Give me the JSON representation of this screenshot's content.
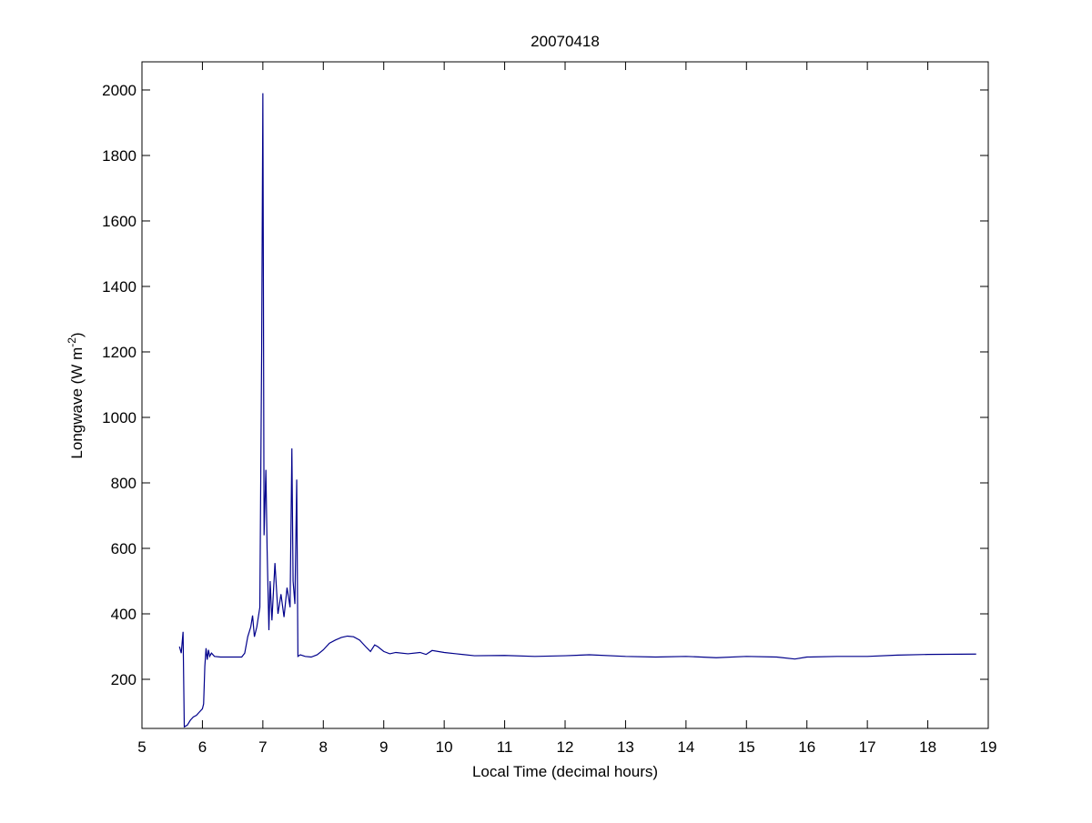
{
  "chart_data": {
    "type": "line",
    "title": "20070418",
    "xlabel": "Local Time (decimal hours)",
    "ylabel": "Longwave (W m",
    "ylabel_superscript": "-2",
    "ylabel_end": ")",
    "x": [
      5.62,
      5.65,
      5.68,
      5.7,
      5.75,
      5.8,
      5.85,
      5.9,
      5.95,
      6.0,
      6.02,
      6.04,
      6.06,
      6.08,
      6.1,
      6.12,
      6.15,
      6.2,
      6.3,
      6.5,
      6.65,
      6.7,
      6.75,
      6.8,
      6.83,
      6.86,
      6.9,
      6.95,
      6.98,
      7.0,
      7.01,
      7.02,
      7.05,
      7.07,
      7.1,
      7.12,
      7.15,
      7.2,
      7.25,
      7.3,
      7.35,
      7.4,
      7.45,
      7.48,
      7.5,
      7.53,
      7.56,
      7.58,
      7.62,
      7.7,
      7.8,
      7.9,
      8.0,
      8.1,
      8.2,
      8.3,
      8.4,
      8.5,
      8.6,
      8.7,
      8.78,
      8.85,
      8.9,
      9.0,
      9.1,
      9.2,
      9.4,
      9.6,
      9.7,
      9.8,
      10.0,
      10.2,
      10.5,
      11.0,
      11.5,
      12.0,
      12.4,
      13.0,
      13.5,
      14.0,
      14.5,
      15.0,
      15.5,
      15.8,
      16.0,
      16.5,
      17.0,
      17.5,
      18.0,
      18.8
    ],
    "series": [
      {
        "name": "Longwave",
        "color": "#00008b",
        "values": [
          300,
          280,
          345,
          55,
          60,
          75,
          85,
          90,
          100,
          110,
          125,
          240,
          295,
          260,
          290,
          270,
          280,
          270,
          268,
          268,
          268,
          280,
          330,
          360,
          395,
          330,
          360,
          420,
          1200,
          1990,
          1340,
          640,
          840,
          600,
          350,
          500,
          380,
          555,
          400,
          460,
          390,
          480,
          420,
          905,
          500,
          430,
          810,
          270,
          275,
          270,
          268,
          275,
          290,
          310,
          320,
          328,
          332,
          330,
          320,
          300,
          285,
          305,
          300,
          285,
          278,
          282,
          278,
          282,
          276,
          288,
          282,
          278,
          272,
          273,
          270,
          272,
          275,
          270,
          268,
          270,
          266,
          270,
          268,
          262,
          268,
          270,
          270,
          274,
          276,
          277
        ]
      }
    ],
    "xlim": [
      5,
      19
    ],
    "xticks": [
      5,
      6,
      7,
      8,
      9,
      10,
      11,
      12,
      13,
      14,
      15,
      16,
      17,
      18,
      19
    ],
    "ylim": [
      50,
      2086
    ],
    "yticks": [
      200,
      400,
      600,
      800,
      1000,
      1200,
      1400,
      1600,
      1800,
      2000
    ],
    "grid": false
  }
}
